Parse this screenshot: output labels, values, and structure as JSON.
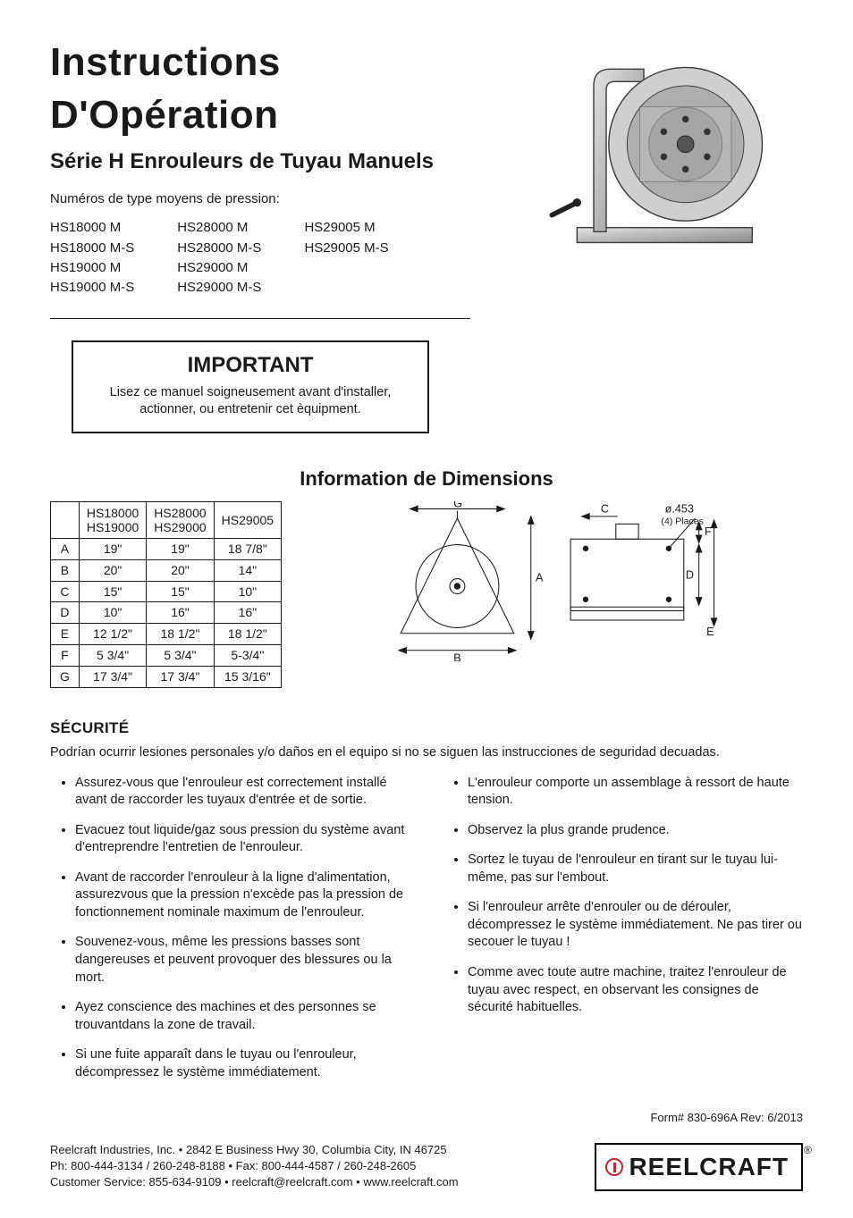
{
  "header": {
    "title": "Instructions D'Opération",
    "subtitle": "Série H Enrouleurs de Tuyau Manuels",
    "intro": "Numéros de type moyens de pression:"
  },
  "models": {
    "col1": [
      "HS18000 M",
      "HS18000 M-S",
      "HS19000 M",
      "HS19000 M-S"
    ],
    "col2": [
      "HS28000 M",
      "HS28000 M-S",
      "HS29000 M",
      "HS29000 M-S"
    ],
    "col3": [
      "HS29005 M",
      "HS29005 M-S"
    ]
  },
  "important": {
    "title": "IMPORTANT",
    "body": "Lisez ce manuel soigneusement avant d'installer, actionner, ou entretenir cet èquipment."
  },
  "dimensions": {
    "title": "Information de Dimensions",
    "columns": [
      {
        "line1": "HS18000",
        "line2": "HS19000"
      },
      {
        "line1": "HS28000",
        "line2": "HS29000"
      },
      {
        "line1": "HS29005",
        "line2": ""
      }
    ],
    "rows": [
      {
        "key": "A",
        "vals": [
          "19\"",
          "19\"",
          "18 7/8\""
        ]
      },
      {
        "key": "B",
        "vals": [
          "20\"",
          "20\"",
          "14\""
        ]
      },
      {
        "key": "C",
        "vals": [
          "15\"",
          "15\"",
          "10\""
        ]
      },
      {
        "key": "D",
        "vals": [
          "10\"",
          "16\"",
          "16\""
        ]
      },
      {
        "key": "E",
        "vals": [
          "12 1/2\"",
          "18 1/2\"",
          "18 1/2\""
        ]
      },
      {
        "key": "F",
        "vals": [
          "5 3/4\"",
          "5 3/4\"",
          "5-3/4\""
        ]
      },
      {
        "key": "G",
        "vals": [
          "17 3/4\"",
          "17 3/4\"",
          "15 3/16\""
        ]
      }
    ],
    "diagram_labels": {
      "A": "A",
      "B": "B",
      "C": "C",
      "D": "D",
      "E": "E",
      "F": "F",
      "G": "G",
      "hole": "ø.453",
      "holes_note": "(4) Places"
    },
    "line_color": "#1a1a1a",
    "fill_color": "none",
    "font_size_pt": 12
  },
  "securite": {
    "title": "SÉCURITÉ",
    "intro": "Podrían ocurrir lesiones personales y/o daños en el equipo si no se siguen las instrucciones de seguridad decuadas.",
    "left": [
      "Assurez-vous que l'enrouleur est correctement installé avant de raccorder les tuyaux d'entrée et de sortie.",
      "Evacuez tout liquide/gaz sous pression du système avant d'entreprendre l'entretien de l'enrouleur.",
      "Avant de raccorder l'enrouleur à la ligne d'alimentation, assurezvous que la pression n'excède pas la pression de fonctionnement nominale maximum de l'enrouleur.",
      "Souvenez-vous, même les pressions basses sont dangereuses et peuvent provoquer des blessures ou la mort.",
      "Ayez conscience des machines et des personnes se trouvantdans la zone de travail.",
      "Si une fuite apparaît dans le tuyau ou l'enrouleur, décompressez le système immédiatement."
    ],
    "right": [
      "L'enrouleur comporte un assemblage à ressort de haute tension.",
      "Observez la plus grande prudence.",
      "Sortez le tuyau de l'enrouleur en tirant sur le tuyau lui-même, pas sur l'embout.",
      "Si l'enrouleur arrête d'enrouler ou de dérouler, décompressez le système immédiatement. Ne pas tirer ou secouer le tuyau !",
      "Comme avec toute autre machine, traitez l'enrouleur de tuyau avec respect, en observant les consignes de sécurité habituelles."
    ]
  },
  "footer": {
    "form_rev": "Form# 830-696A  Rev: 6/2013",
    "line1": "Reelcraft Industries, Inc.  •  2842 E Business Hwy 30, Columbia City, IN 46725",
    "line2": "Ph: 800-444-3134 / 260-248-8188  •  Fax: 800-444-4587 / 260-248-2605",
    "line3": "Customer Service: 855-634-9109  •  reelcraft@reelcraft.com  •  www.reelcraft.com",
    "brand": "REELCRAFT",
    "reg": "®"
  },
  "product_illustration": {
    "stroke": "#3a3a3a",
    "fill_light": "#d0d0d0",
    "fill_mid": "#9a9a9a",
    "fill_dark": "#555555"
  }
}
